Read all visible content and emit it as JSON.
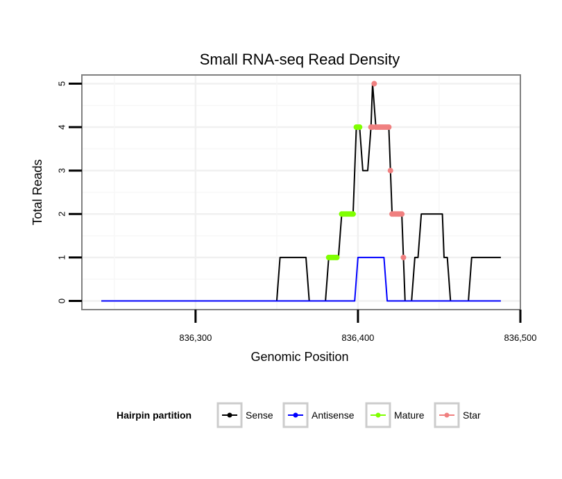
{
  "chart_data": {
    "type": "line",
    "title": "Small RNA-seq Read Density",
    "xlabel": "Genomic Position",
    "ylabel": "Total Reads",
    "xlim": [
      836230,
      836500
    ],
    "ylim": [
      -0.2,
      5.2
    ],
    "x_ticks": [
      836300,
      836400,
      836500
    ],
    "x_tick_labels": [
      "836,300",
      "836,400",
      "836,500"
    ],
    "y_ticks": [
      0,
      1,
      2,
      3,
      4,
      5
    ],
    "y_tick_labels": [
      "0",
      "1",
      "2",
      "3",
      "4",
      "5"
    ],
    "grid": true,
    "legend_position": "bottom",
    "legend_title": "Hairpin partition",
    "series": [
      {
        "name": "Sense",
        "color": "#000000",
        "line": [
          [
            836242,
            0
          ],
          [
            836350,
            0
          ],
          [
            836352,
            1
          ],
          [
            836368,
            1
          ],
          [
            836370,
            0
          ],
          [
            836380,
            0
          ],
          [
            836382,
            1
          ],
          [
            836388,
            1
          ],
          [
            836390,
            2
          ],
          [
            836397,
            2
          ],
          [
            836399,
            4
          ],
          [
            836401,
            4
          ],
          [
            836403,
            3
          ],
          [
            836406,
            3
          ],
          [
            836408,
            4
          ],
          [
            836409,
            5
          ],
          [
            836411,
            4
          ],
          [
            836419,
            4
          ],
          [
            836421,
            2
          ],
          [
            836427,
            2
          ],
          [
            836429,
            0
          ],
          [
            836433,
            0
          ],
          [
            836435,
            1
          ],
          [
            836437,
            1
          ],
          [
            836439,
            2
          ],
          [
            836452,
            2
          ],
          [
            836453,
            1
          ],
          [
            836455,
            1
          ],
          [
            836457,
            0
          ],
          [
            836468,
            0
          ],
          [
            836470,
            1
          ],
          [
            836488,
            1
          ]
        ]
      },
      {
        "name": "Antisense",
        "color": "#0000ff",
        "line": [
          [
            836242,
            0
          ],
          [
            836398,
            0
          ],
          [
            836400,
            1
          ],
          [
            836416,
            1
          ],
          [
            836418,
            0
          ],
          [
            836488,
            0
          ]
        ]
      },
      {
        "name": "Mature",
        "color": "#7fff00",
        "points": [
          [
            836382,
            1
          ],
          [
            836383,
            1
          ],
          [
            836384,
            1
          ],
          [
            836385,
            1
          ],
          [
            836386,
            1
          ],
          [
            836387,
            1
          ],
          [
            836390,
            2
          ],
          [
            836391,
            2
          ],
          [
            836392,
            2
          ],
          [
            836393,
            2
          ],
          [
            836394,
            2
          ],
          [
            836395,
            2
          ],
          [
            836396,
            2
          ],
          [
            836397,
            2
          ],
          [
            836399,
            4
          ],
          [
            836400,
            4
          ],
          [
            836401,
            4
          ]
        ]
      },
      {
        "name": "Star",
        "color": "#f08080",
        "points": [
          [
            836408,
            4
          ],
          [
            836409,
            4
          ],
          [
            836410,
            5
          ],
          [
            836411,
            4
          ],
          [
            836412,
            4
          ],
          [
            836413,
            4
          ],
          [
            836414,
            4
          ],
          [
            836415,
            4
          ],
          [
            836416,
            4
          ],
          [
            836417,
            4
          ],
          [
            836418,
            4
          ],
          [
            836419,
            4
          ],
          [
            836420,
            3
          ],
          [
            836421,
            2
          ],
          [
            836422,
            2
          ],
          [
            836423,
            2
          ],
          [
            836424,
            2
          ],
          [
            836425,
            2
          ],
          [
            836426,
            2
          ],
          [
            836427,
            2
          ],
          [
            836428,
            1
          ]
        ]
      }
    ]
  }
}
